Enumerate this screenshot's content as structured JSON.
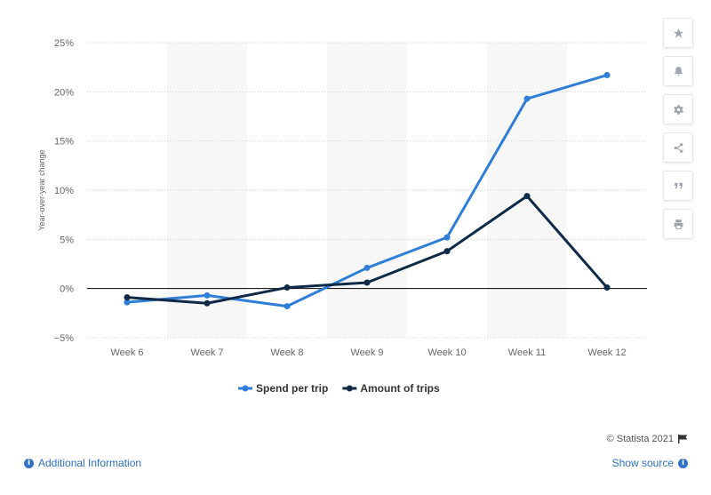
{
  "chart_data": {
    "type": "line",
    "categories": [
      "Week 6",
      "Week 7",
      "Week 8",
      "Week 9",
      "Week 10",
      "Week 11",
      "Week 12"
    ],
    "series": [
      {
        "name": "Spend per trip",
        "color": "#2f7ed8",
        "values": [
          -1.4,
          -0.7,
          -1.8,
          2.1,
          5.2,
          19.3,
          21.7
        ]
      },
      {
        "name": "Amount of trips",
        "color": "#0e2a47",
        "values": [
          -0.9,
          -1.5,
          0.1,
          0.6,
          3.8,
          9.4,
          0.1
        ]
      }
    ],
    "yticks": [
      -5,
      0,
      5,
      10,
      15,
      20,
      25
    ],
    "ytick_labels": [
      "−5%",
      "0%",
      "5%",
      "10%",
      "15%",
      "20%",
      "25%"
    ],
    "ylim": [
      -5,
      25
    ],
    "ylabel": "Year-over-year change",
    "grid": "horizontal dotted",
    "alternating_column_bands": true,
    "legend_position": "bottom-center"
  },
  "tools": [
    {
      "name": "favorite",
      "icon": "star-icon"
    },
    {
      "name": "notification",
      "icon": "bell-icon"
    },
    {
      "name": "settings",
      "icon": "gear-icon"
    },
    {
      "name": "share",
      "icon": "share-icon"
    },
    {
      "name": "cite",
      "icon": "quote-icon"
    },
    {
      "name": "print",
      "icon": "print-icon"
    }
  ],
  "footer": {
    "credit": "© Statista 2021",
    "additional_info": "Additional Information",
    "show_source": "Show source"
  }
}
